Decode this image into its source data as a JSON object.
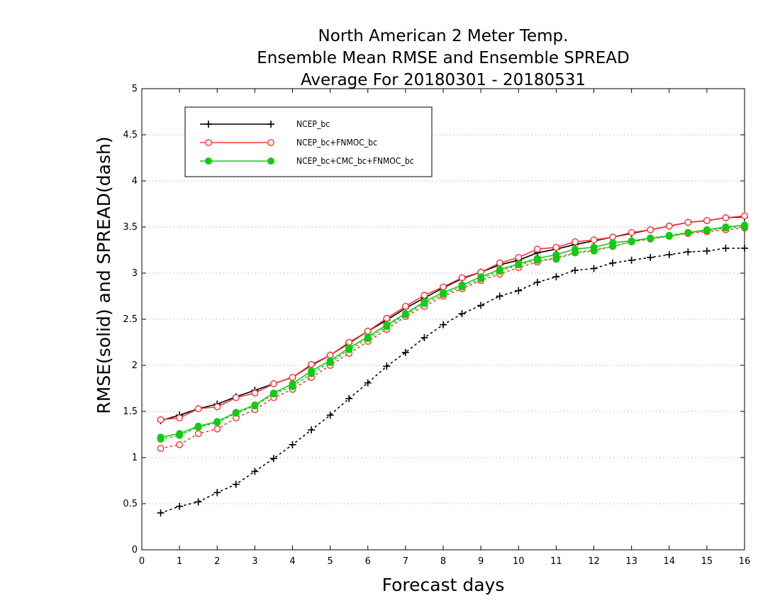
{
  "chart_data": {
    "type": "line",
    "title": [
      "North American 2 Meter Temp.",
      "Ensemble Mean RMSE and Ensemble SPREAD",
      "Average For 20180301 - 20180531"
    ],
    "xlabel": "Forecast days",
    "ylabel": "RMSE(solid) and SPREAD(dash)",
    "xlim": [
      0,
      16
    ],
    "ylim": [
      0,
      5
    ],
    "xticks": [
      "0",
      "1",
      "2",
      "3",
      "4",
      "5",
      "6",
      "7",
      "8",
      "9",
      "10",
      "11",
      "12",
      "13",
      "14",
      "15",
      "16"
    ],
    "yticks": [
      "0",
      "0.5",
      "1",
      "1.5",
      "2",
      "2.5",
      "3",
      "3.5",
      "4",
      "4.5",
      "5"
    ],
    "grid": "horizontal dotted",
    "legend_position": "top-left",
    "x": [
      0.5,
      1,
      1.5,
      2,
      2.5,
      3,
      3.5,
      4,
      4.5,
      5,
      5.5,
      6,
      6.5,
      7,
      7.5,
      8,
      8.5,
      9,
      9.5,
      10,
      10.5,
      11,
      11.5,
      12,
      12.5,
      13,
      13.5,
      14,
      14.5,
      15,
      15.5,
      16
    ],
    "series": [
      {
        "name": "NCEP_bc",
        "color": "#000000",
        "marker": "plus",
        "rmse": [
          1.4,
          1.46,
          1.53,
          1.58,
          1.66,
          1.73,
          1.8,
          1.87,
          2.0,
          2.11,
          2.24,
          2.37,
          2.49,
          2.62,
          2.73,
          2.84,
          2.94,
          3.01,
          3.09,
          3.14,
          3.22,
          3.26,
          3.31,
          3.35,
          3.39,
          3.43,
          3.47,
          3.51,
          3.55,
          3.57,
          3.6,
          3.61
        ],
        "spread": [
          0.4,
          0.47,
          0.52,
          0.62,
          0.71,
          0.85,
          0.99,
          1.14,
          1.3,
          1.46,
          1.64,
          1.81,
          1.99,
          2.14,
          2.3,
          2.44,
          2.56,
          2.65,
          2.75,
          2.81,
          2.9,
          2.96,
          3.03,
          3.05,
          3.11,
          3.14,
          3.17,
          3.2,
          3.23,
          3.24,
          3.27,
          3.27
        ]
      },
      {
        "name": "NCEP_bc+FNMOC_bc",
        "color": "#ff3333",
        "marker": "open-circle",
        "rmse": [
          1.41,
          1.43,
          1.53,
          1.55,
          1.65,
          1.7,
          1.8,
          1.87,
          2.01,
          2.11,
          2.25,
          2.37,
          2.51,
          2.64,
          2.76,
          2.85,
          2.95,
          3.01,
          3.11,
          3.17,
          3.26,
          3.28,
          3.34,
          3.36,
          3.39,
          3.44,
          3.47,
          3.51,
          3.55,
          3.57,
          3.6,
          3.62
        ],
        "spread": [
          1.1,
          1.14,
          1.26,
          1.31,
          1.43,
          1.52,
          1.65,
          1.74,
          1.87,
          2.0,
          2.13,
          2.26,
          2.39,
          2.53,
          2.64,
          2.75,
          2.83,
          2.92,
          2.99,
          3.06,
          3.12,
          3.17,
          3.22,
          3.25,
          3.29,
          3.34,
          3.37,
          3.4,
          3.43,
          3.45,
          3.47,
          3.49
        ]
      },
      {
        "name": "NCEP_bc+CMC_bc+FNMOC_bc",
        "color": "#11cc11",
        "marker": "filled-circle",
        "rmse": [
          1.22,
          1.26,
          1.34,
          1.39,
          1.49,
          1.57,
          1.7,
          1.8,
          1.94,
          2.05,
          2.19,
          2.31,
          2.44,
          2.56,
          2.69,
          2.79,
          2.87,
          2.96,
          3.04,
          3.1,
          3.16,
          3.2,
          3.26,
          3.28,
          3.33,
          3.35,
          3.38,
          3.4,
          3.44,
          3.47,
          3.5,
          3.52
        ],
        "spread": [
          1.2,
          1.24,
          1.33,
          1.38,
          1.48,
          1.56,
          1.69,
          1.77,
          1.91,
          2.03,
          2.17,
          2.29,
          2.42,
          2.55,
          2.67,
          2.77,
          2.85,
          2.94,
          3.02,
          3.09,
          3.14,
          3.15,
          3.22,
          3.24,
          3.29,
          3.34,
          3.38,
          3.41,
          3.44,
          3.46,
          3.49,
          3.5
        ]
      }
    ]
  }
}
